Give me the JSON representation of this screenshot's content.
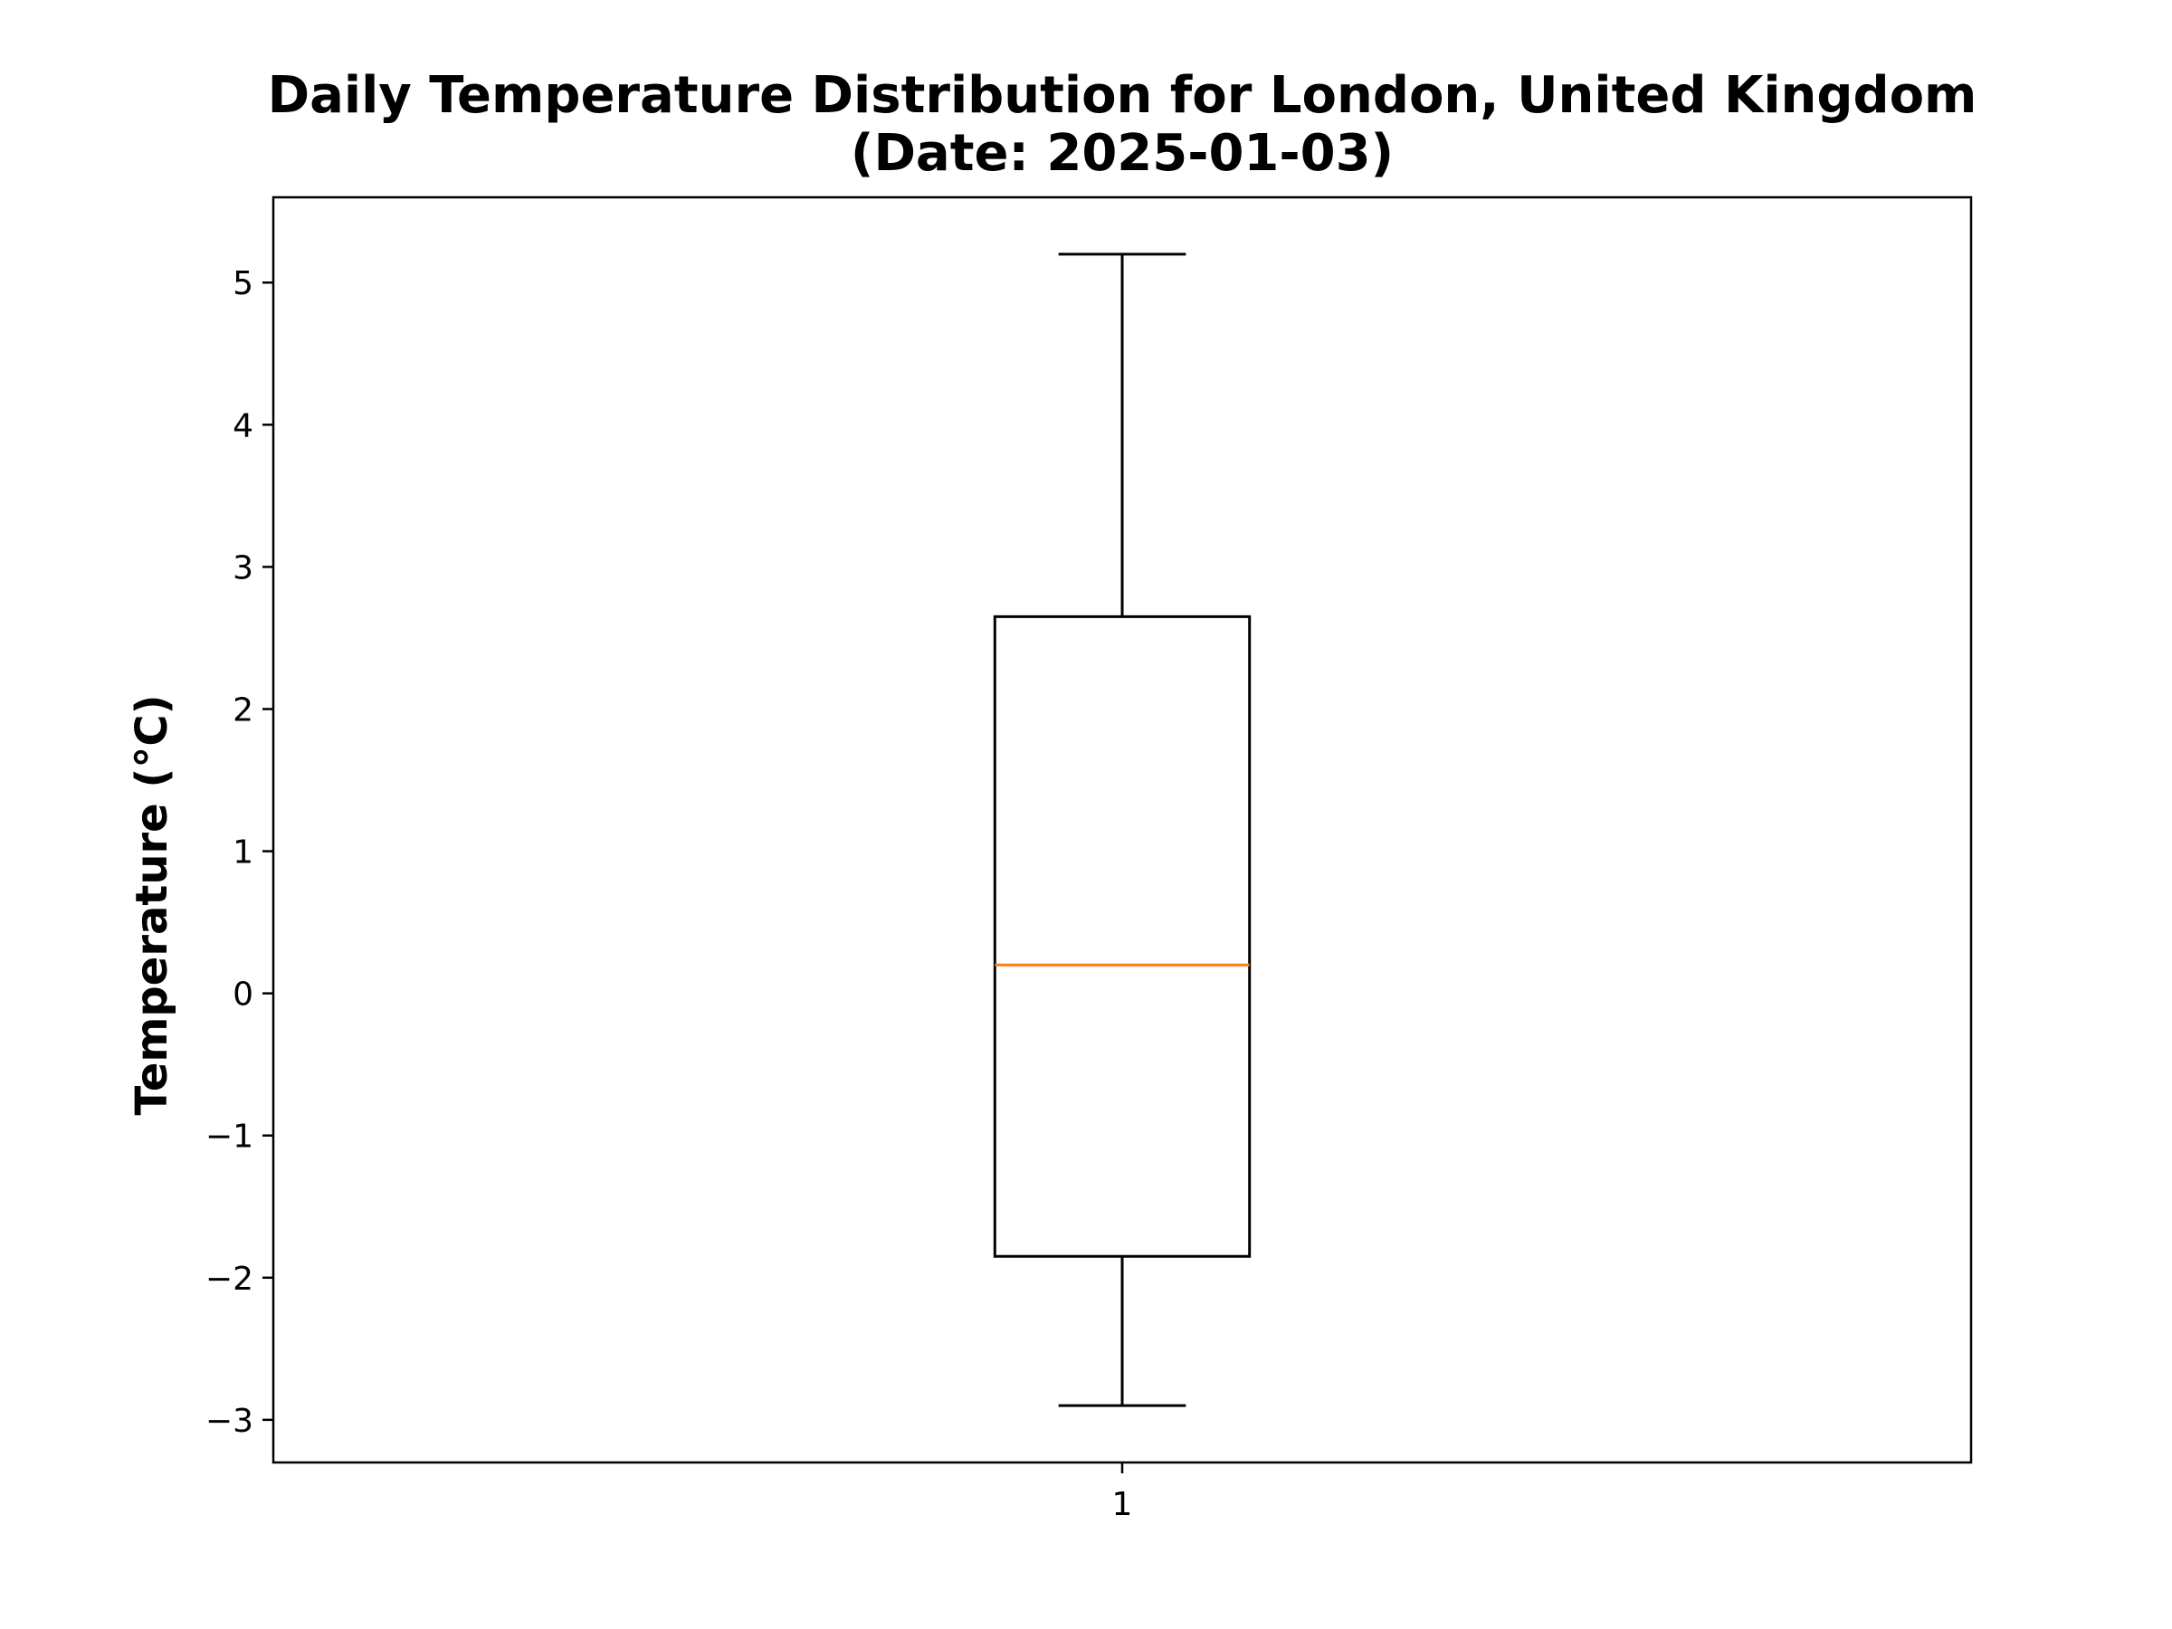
{
  "chart_data": {
    "type": "box",
    "title": "Daily Temperature Distribution for London, United Kingdom\n(Date: 2025-01-03)",
    "title_lines": [
      "Daily Temperature Distribution for London, United Kingdom",
      "(Date: 2025-01-03)"
    ],
    "xlabel": "",
    "ylabel": "Temperature (°C)",
    "categories": [
      "1"
    ],
    "ylim": [
      -3.3,
      5.6
    ],
    "yticks": [
      -3,
      -2,
      -1,
      0,
      1,
      2,
      3,
      4,
      5
    ],
    "ytick_labels": [
      "−3",
      "−2",
      "−1",
      "0",
      "1",
      "2",
      "3",
      "4",
      "5"
    ],
    "boxes": [
      {
        "category": "1",
        "whisker_low": -2.9,
        "q1": -1.85,
        "median": 0.2,
        "q3": 2.65,
        "whisker_high": 5.2
      }
    ],
    "grid": false,
    "colors": {
      "box": "#000000",
      "median": "#ff7f0e",
      "whisker": "#000000"
    }
  }
}
